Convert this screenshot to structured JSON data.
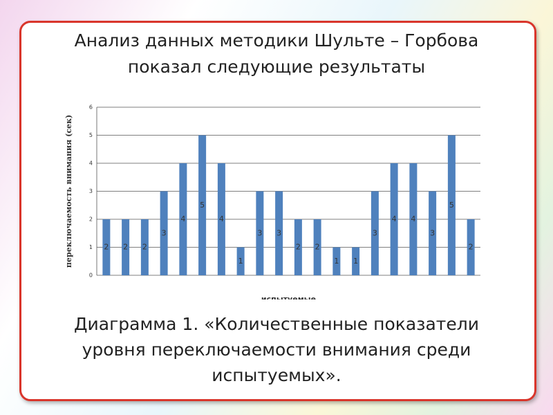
{
  "header": {
    "title": "Анализ данных методики Шульте – Горбова показал следующие результаты"
  },
  "chart_data": {
    "type": "bar",
    "y_label": "переключаемость внимания (сек)",
    "x_label": "испытуемые",
    "categories": [
      null,
      null,
      null,
      null,
      null,
      null,
      null,
      null,
      null,
      null,
      null,
      null,
      null,
      null,
      null,
      null,
      null,
      null,
      null,
      null
    ],
    "values": [
      2,
      2,
      2,
      3,
      4,
      5,
      4,
      1,
      3,
      3,
      2,
      2,
      1,
      1,
      3,
      4,
      4,
      3,
      5,
      2
    ],
    "color": "#4f81bd",
    "ylim": [
      0,
      6
    ],
    "yticks": [
      0,
      1,
      2,
      3,
      4,
      5,
      6
    ],
    "grid": true
  },
  "caption": "Диаграмма 1. «Количественные показатели уровня переключаемости внимания среди испытуемых»."
}
